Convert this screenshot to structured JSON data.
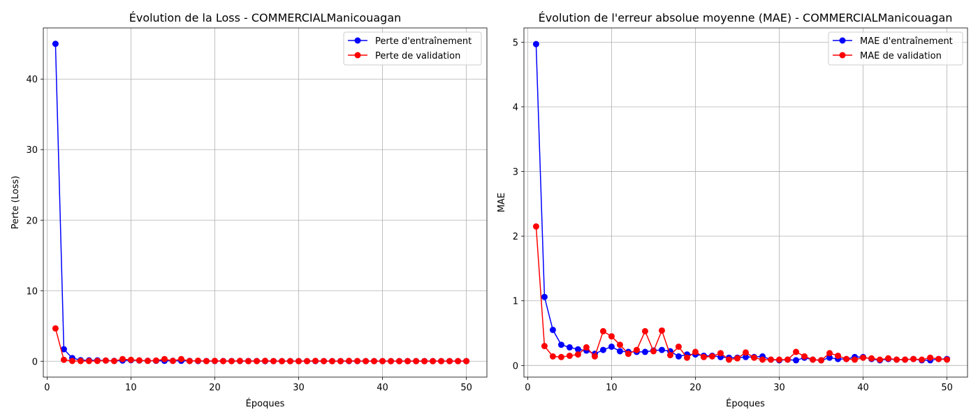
{
  "chart_data": [
    {
      "type": "line",
      "title": "Évolution de la Loss - COMMERCIALManicouagan",
      "xlabel": "Époques",
      "ylabel": "Perte (Loss)",
      "xlim": [
        -0.45,
        52.45
      ],
      "ylim": [
        -2.25,
        47.25
      ],
      "xticks": [
        0,
        10,
        20,
        30,
        40,
        50
      ],
      "yticks": [
        0,
        10,
        20,
        30,
        40
      ],
      "grid": true,
      "legend_position": "top-right",
      "x": [
        1,
        2,
        3,
        4,
        5,
        6,
        7,
        8,
        9,
        10,
        11,
        12,
        13,
        14,
        15,
        16,
        17,
        18,
        19,
        20,
        21,
        22,
        23,
        24,
        25,
        26,
        27,
        28,
        29,
        30,
        31,
        32,
        33,
        34,
        35,
        36,
        37,
        38,
        39,
        40,
        41,
        42,
        43,
        44,
        45,
        46,
        47,
        48,
        49,
        50
      ],
      "series": [
        {
          "name": "Perte d'entraînement",
          "color": "#0000ff",
          "values": [
            45.0,
            1.7,
            0.45,
            0.15,
            0.12,
            0.12,
            0.1,
            0.05,
            0.1,
            0.15,
            0.1,
            0.06,
            0.06,
            0.06,
            0.06,
            0.06,
            0.05,
            0.03,
            0.03,
            0.03,
            0.03,
            0.03,
            0.03,
            0.03,
            0.03,
            0.02,
            0.02,
            0.02,
            0.02,
            0.02,
            0.02,
            0.02,
            0.02,
            0.02,
            0.02,
            0.02,
            0.02,
            0.02,
            0.02,
            0.02,
            0.02,
            0.02,
            0.02,
            0.02,
            0.02,
            0.02,
            0.02,
            0.02,
            0.02,
            0.02
          ]
        },
        {
          "name": "Perte de validation",
          "color": "#ff0000",
          "values": [
            4.65,
            0.2,
            0.04,
            0.03,
            0.03,
            0.04,
            0.1,
            0.03,
            0.3,
            0.2,
            0.12,
            0.05,
            0.1,
            0.3,
            0.05,
            0.3,
            0.03,
            0.08,
            0.02,
            0.05,
            0.02,
            0.02,
            0.05,
            0.01,
            0.02,
            0.05,
            0.02,
            0.01,
            0.01,
            0.01,
            0.01,
            0.05,
            0.02,
            0.01,
            0.01,
            0.05,
            0.03,
            0.01,
            0.01,
            0.02,
            0.01,
            0.01,
            0.01,
            0.01,
            0.01,
            0.01,
            0.01,
            0.02,
            0.01,
            0.01
          ]
        }
      ]
    },
    {
      "type": "line",
      "title": "Évolution de l'erreur absolue moyenne (MAE) - COMMERCIALManicouagan",
      "xlabel": "Époques",
      "ylabel": "MAE",
      "xlim": [
        -0.45,
        52.45
      ],
      "ylim": [
        -0.18,
        5.22
      ],
      "xticks": [
        0,
        10,
        20,
        30,
        40,
        50
      ],
      "yticks": [
        0,
        1,
        2,
        3,
        4,
        5
      ],
      "grid": true,
      "legend_position": "top-right",
      "x": [
        1,
        2,
        3,
        4,
        5,
        6,
        7,
        8,
        9,
        10,
        11,
        12,
        13,
        14,
        15,
        16,
        17,
        18,
        19,
        20,
        21,
        22,
        23,
        24,
        25,
        26,
        27,
        28,
        29,
        30,
        31,
        32,
        33,
        34,
        35,
        36,
        37,
        38,
        39,
        40,
        41,
        42,
        43,
        44,
        45,
        46,
        47,
        48,
        49,
        50
      ],
      "series": [
        {
          "name": "MAE d'entraînement",
          "color": "#0000ff",
          "values": [
            4.97,
            1.06,
            0.55,
            0.32,
            0.28,
            0.25,
            0.23,
            0.18,
            0.24,
            0.29,
            0.22,
            0.21,
            0.21,
            0.21,
            0.23,
            0.24,
            0.22,
            0.14,
            0.17,
            0.17,
            0.15,
            0.15,
            0.13,
            0.12,
            0.12,
            0.13,
            0.13,
            0.14,
            0.09,
            0.08,
            0.09,
            0.08,
            0.12,
            0.09,
            0.08,
            0.12,
            0.1,
            0.1,
            0.13,
            0.13,
            0.1,
            0.08,
            0.1,
            0.09,
            0.09,
            0.1,
            0.08,
            0.08,
            0.1,
            0.1
          ]
        },
        {
          "name": "MAE de validation",
          "color": "#ff0000",
          "values": [
            2.15,
            0.3,
            0.14,
            0.13,
            0.15,
            0.17,
            0.28,
            0.14,
            0.53,
            0.45,
            0.32,
            0.18,
            0.24,
            0.53,
            0.22,
            0.54,
            0.16,
            0.29,
            0.12,
            0.21,
            0.13,
            0.14,
            0.19,
            0.09,
            0.11,
            0.2,
            0.12,
            0.09,
            0.09,
            0.09,
            0.09,
            0.21,
            0.14,
            0.09,
            0.08,
            0.19,
            0.15,
            0.1,
            0.09,
            0.12,
            0.11,
            0.09,
            0.11,
            0.09,
            0.09,
            0.1,
            0.09,
            0.12,
            0.1,
            0.09
          ]
        }
      ]
    }
  ]
}
